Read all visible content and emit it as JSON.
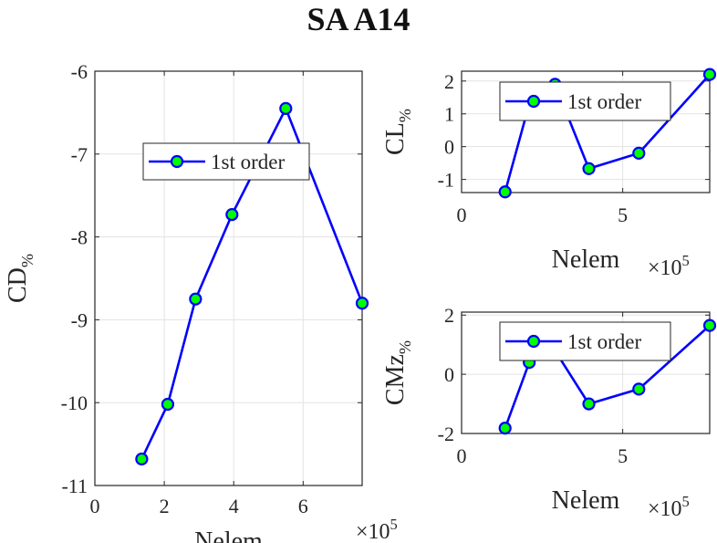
{
  "title": "SA A14",
  "chart_data": [
    {
      "type": "line",
      "ylabel": "CD",
      "ylabel_sub": "%",
      "xlabel": "Nelem",
      "x_exponent": "5",
      "xlim": [
        0,
        7.7
      ],
      "ylim": [
        -11,
        -6
      ],
      "xticks": [
        0,
        2,
        4,
        6
      ],
      "yticks": [
        -11,
        -10,
        -9,
        -8,
        -7,
        -6
      ],
      "grid": true,
      "legend_position": "top-left",
      "series": [
        {
          "name": "1st order",
          "color": "#0000ff",
          "marker_color": "#00ff00",
          "x": [
            1.35,
            2.1,
            2.9,
            3.95,
            5.5,
            7.7
          ],
          "y": [
            -10.68,
            -10.02,
            -8.75,
            -7.73,
            -6.45,
            -8.8
          ]
        }
      ]
    },
    {
      "type": "line",
      "ylabel": "CL",
      "ylabel_sub": "%",
      "xlabel": "Nelem",
      "x_exponent": "5",
      "xlim": [
        0,
        7.7
      ],
      "ylim": [
        -1.4,
        2.3
      ],
      "xticks": [
        0,
        5
      ],
      "yticks": [
        -1,
        0,
        1,
        2
      ],
      "grid": true,
      "legend_position": "top",
      "series": [
        {
          "name": "1st order",
          "color": "#0000ff",
          "marker_color": "#00ff00",
          "x": [
            1.35,
            2.1,
            2.9,
            3.95,
            5.5,
            7.7
          ],
          "y": [
            -1.38,
            1.3,
            1.9,
            -0.67,
            -0.2,
            2.2
          ]
        }
      ]
    },
    {
      "type": "line",
      "ylabel": "CMz",
      "ylabel_sub": "%",
      "xlabel": "Nelem",
      "x_exponent": "5",
      "xlim": [
        0,
        7.7
      ],
      "ylim": [
        -2,
        2.1
      ],
      "xticks": [
        0,
        5
      ],
      "yticks": [
        -2,
        0,
        2
      ],
      "grid": true,
      "legend_position": "top",
      "series": [
        {
          "name": "1st order",
          "color": "#0000ff",
          "marker_color": "#00ff00",
          "x": [
            1.35,
            2.1,
            2.9,
            3.95,
            5.5,
            7.7
          ],
          "y": [
            -1.82,
            0.4,
            0.8,
            -1.0,
            -0.5,
            1.65
          ]
        }
      ]
    }
  ]
}
